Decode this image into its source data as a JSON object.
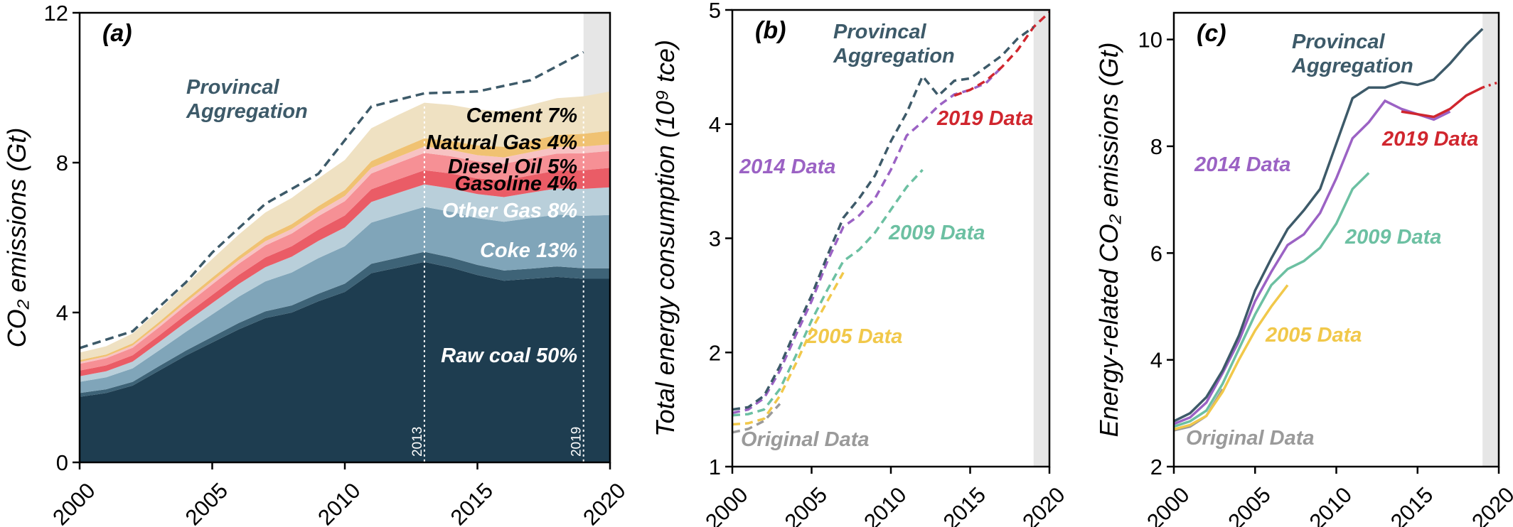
{
  "chart_data": [
    {
      "type": "area",
      "panel_label": "(a)",
      "ylabel": "CO₂ emissions (Gt)",
      "xlim": [
        2000,
        2020
      ],
      "ylim": [
        0,
        12
      ],
      "xticks": [
        2000,
        2005,
        2010,
        2015,
        2020
      ],
      "yticks": [
        0,
        4,
        8,
        12
      ],
      "x": [
        2000,
        2001,
        2002,
        2003,
        2004,
        2005,
        2006,
        2007,
        2008,
        2009,
        2010,
        2011,
        2012,
        2013,
        2014,
        2015,
        2016,
        2017,
        2018,
        2019,
        2020
      ],
      "series": [
        {
          "name": "Raw coal 50%",
          "color": "#1e3d50",
          "values": [
            1.75,
            1.85,
            2.05,
            2.45,
            2.85,
            3.2,
            3.55,
            3.85,
            4.0,
            4.3,
            4.55,
            5.05,
            5.2,
            5.35,
            5.2,
            5.0,
            4.85,
            4.9,
            4.95,
            4.9,
            4.9
          ]
        },
        {
          "name": "",
          "color": "#3e6377",
          "values": [
            0.1,
            0.1,
            0.1,
            0.12,
            0.13,
            0.15,
            0.17,
            0.18,
            0.19,
            0.2,
            0.22,
            0.25,
            0.26,
            0.27,
            0.27,
            0.27,
            0.27,
            0.27,
            0.28,
            0.28,
            0.28
          ]
        },
        {
          "name": "Coke 13%",
          "color": "#80a5b9",
          "values": [
            0.3,
            0.32,
            0.36,
            0.42,
            0.5,
            0.6,
            0.7,
            0.8,
            0.88,
            0.95,
            1.0,
            1.1,
            1.15,
            1.2,
            1.22,
            1.25,
            1.3,
            1.35,
            1.38,
            1.4,
            1.42
          ]
        },
        {
          "name": "Other Gas 8%",
          "color": "#b9cfda",
          "values": [
            0.15,
            0.16,
            0.18,
            0.22,
            0.26,
            0.3,
            0.34,
            0.38,
            0.42,
            0.46,
            0.5,
            0.55,
            0.58,
            0.6,
            0.62,
            0.64,
            0.66,
            0.68,
            0.7,
            0.72,
            0.74
          ]
        },
        {
          "name": "Gasoline 4%",
          "color": "#ea5c66",
          "values": [
            0.15,
            0.16,
            0.17,
            0.18,
            0.2,
            0.22,
            0.24,
            0.26,
            0.28,
            0.3,
            0.32,
            0.34,
            0.36,
            0.38,
            0.4,
            0.42,
            0.44,
            0.46,
            0.48,
            0.5,
            0.52
          ]
        },
        {
          "name": "Diesel Oil 5%",
          "color": "#f69095",
          "values": [
            0.18,
            0.19,
            0.2,
            0.22,
            0.25,
            0.28,
            0.3,
            0.32,
            0.34,
            0.36,
            0.38,
            0.42,
            0.44,
            0.46,
            0.46,
            0.45,
            0.45,
            0.45,
            0.45,
            0.45,
            0.45
          ]
        },
        {
          "name": "",
          "color": "#f7c3c3",
          "values": [
            0.05,
            0.05,
            0.06,
            0.07,
            0.08,
            0.09,
            0.1,
            0.11,
            0.12,
            0.13,
            0.14,
            0.15,
            0.16,
            0.17,
            0.17,
            0.17,
            0.17,
            0.17,
            0.18,
            0.18,
            0.18
          ]
        },
        {
          "name": "Natural Gas 4%",
          "color": "#f0c272",
          "values": [
            0.05,
            0.05,
            0.06,
            0.07,
            0.08,
            0.09,
            0.1,
            0.12,
            0.13,
            0.14,
            0.16,
            0.18,
            0.2,
            0.22,
            0.24,
            0.26,
            0.28,
            0.3,
            0.32,
            0.34,
            0.36
          ]
        },
        {
          "name": "Cement 7%",
          "color": "#efe1c2",
          "values": [
            0.2,
            0.22,
            0.26,
            0.32,
            0.4,
            0.5,
            0.58,
            0.65,
            0.7,
            0.74,
            0.8,
            0.88,
            0.92,
            0.95,
            0.96,
            0.96,
            0.95,
            0.96,
            0.98,
            1.0,
            1.05
          ]
        }
      ],
      "provincial": {
        "name": "Provincal Aggregation",
        "color": "#3d5a69",
        "x": [
          2000,
          2002,
          2004,
          2005,
          2007,
          2009,
          2011,
          2013,
          2015,
          2017,
          2019
        ],
        "values": [
          3.05,
          3.5,
          4.8,
          5.6,
          6.9,
          7.7,
          9.5,
          9.85,
          9.9,
          10.2,
          10.95
        ]
      },
      "vlines": [
        {
          "x": 2013,
          "label": "2013"
        },
        {
          "x": 2019,
          "label": "2019"
        }
      ]
    },
    {
      "type": "line",
      "panel_label": "(b)",
      "ylabel": "Total energy consumption (10⁹ tce)",
      "xlim": [
        2000,
        2020
      ],
      "ylim": [
        1,
        5
      ],
      "xticks": [
        2000,
        2005,
        2010,
        2015,
        2020
      ],
      "yticks": [
        1,
        2,
        3,
        4,
        5
      ],
      "series": [
        {
          "name": "Provincal Aggregation",
          "color": "#3d5a69",
          "x": [
            2000,
            2001,
            2002,
            2003,
            2004,
            2005,
            2006,
            2007,
            2008,
            2009,
            2010,
            2011,
            2012,
            2013,
            2014,
            2015,
            2016,
            2017,
            2018,
            2019
          ],
          "values": [
            1.5,
            1.52,
            1.62,
            1.88,
            2.2,
            2.5,
            2.85,
            3.18,
            3.35,
            3.55,
            3.85,
            4.1,
            4.42,
            4.25,
            4.38,
            4.4,
            4.5,
            4.6,
            4.75,
            4.85
          ]
        },
        {
          "name": "2019 Data",
          "color": "#d0262e",
          "x": [
            2014,
            2015,
            2016,
            2017,
            2018,
            2019,
            2020
          ],
          "values": [
            4.25,
            4.3,
            4.38,
            4.5,
            4.65,
            4.85,
            4.98
          ]
        },
        {
          "name": "2014 Data",
          "color": "#9b62c4",
          "x": [
            2000,
            2001,
            2002,
            2003,
            2004,
            2005,
            2006,
            2007,
            2008,
            2009,
            2010,
            2011,
            2012,
            2013,
            2014,
            2015,
            2016,
            2017
          ],
          "values": [
            1.47,
            1.5,
            1.6,
            1.84,
            2.15,
            2.45,
            2.8,
            3.1,
            3.2,
            3.35,
            3.6,
            3.9,
            4.02,
            4.16,
            4.26,
            4.3,
            4.36,
            4.5
          ]
        },
        {
          "name": "2009 Data",
          "color": "#6cc0a2",
          "x": [
            2000,
            2001,
            2002,
            2003,
            2004,
            2005,
            2006,
            2007,
            2008,
            2009,
            2010,
            2011,
            2012
          ],
          "values": [
            1.45,
            1.46,
            1.5,
            1.68,
            1.97,
            2.28,
            2.55,
            2.8,
            2.9,
            3.05,
            3.25,
            3.45,
            3.6
          ]
        },
        {
          "name": "2005 Data",
          "color": "#f1c84a",
          "x": [
            2000,
            2001,
            2002,
            2003,
            2004,
            2005,
            2006,
            2007
          ],
          "values": [
            1.37,
            1.38,
            1.42,
            1.62,
            1.9,
            2.2,
            2.45,
            2.7
          ]
        },
        {
          "name": "Original Data",
          "color": "#9a9a9a",
          "x": [
            2000,
            2001,
            2002,
            2003
          ],
          "values": [
            1.3,
            1.33,
            1.4,
            1.55
          ]
        }
      ],
      "shade_from": 2019
    },
    {
      "type": "line",
      "panel_label": "(c)",
      "ylabel": "Energy-related CO₂ emissions (Gt)",
      "xlim": [
        2000,
        2020
      ],
      "ylim": [
        2,
        10.5
      ],
      "xticks": [
        2000,
        2005,
        2010,
        2015,
        2020
      ],
      "yticks": [
        2,
        4,
        6,
        8,
        10
      ],
      "series": [
        {
          "name": "Provincal Aggregation",
          "color": "#3d5a69",
          "x": [
            2000,
            2001,
            2002,
            2003,
            2004,
            2005,
            2006,
            2007,
            2008,
            2009,
            2010,
            2011,
            2012,
            2013,
            2014,
            2015,
            2016,
            2017,
            2018,
            2019
          ],
          "values": [
            2.85,
            3.0,
            3.3,
            3.8,
            4.45,
            5.3,
            5.9,
            6.45,
            6.8,
            7.2,
            8.05,
            8.9,
            9.1,
            9.1,
            9.2,
            9.15,
            9.25,
            9.55,
            9.9,
            10.2
          ]
        },
        {
          "name": "2019 Data",
          "color": "#d0262e",
          "x": [
            2014,
            2015,
            2016,
            2017,
            2018,
            2019,
            2020
          ],
          "values": [
            8.65,
            8.6,
            8.55,
            8.7,
            8.95,
            9.1,
            9.2
          ]
        },
        {
          "name": "2014 Data",
          "color": "#9b62c4",
          "x": [
            2000,
            2001,
            2002,
            2003,
            2004,
            2005,
            2006,
            2007,
            2008,
            2009,
            2010,
            2011,
            2012,
            2013,
            2014,
            2015,
            2016,
            2017
          ],
          "values": [
            2.8,
            2.92,
            3.2,
            3.75,
            4.35,
            5.1,
            5.65,
            6.15,
            6.35,
            6.75,
            7.4,
            8.15,
            8.45,
            8.85,
            8.7,
            8.6,
            8.5,
            8.65
          ]
        },
        {
          "name": "2009 Data",
          "color": "#6cc0a2",
          "x": [
            2000,
            2001,
            2002,
            2003,
            2004,
            2005,
            2006,
            2007,
            2008,
            2009,
            2010,
            2011,
            2012
          ],
          "values": [
            2.75,
            2.85,
            3.05,
            3.55,
            4.2,
            4.85,
            5.4,
            5.7,
            5.85,
            6.1,
            6.55,
            7.2,
            7.5
          ]
        },
        {
          "name": "2005 Data",
          "color": "#f1c84a",
          "x": [
            2000,
            2001,
            2002,
            2003,
            2004,
            2005,
            2006,
            2007
          ],
          "values": [
            2.7,
            2.78,
            2.95,
            3.4,
            4.0,
            4.55,
            5.0,
            5.4
          ]
        },
        {
          "name": "Original Data",
          "color": "#9a9a9a",
          "x": [
            2000,
            2001,
            2002,
            2003
          ],
          "values": [
            2.68,
            2.75,
            2.95,
            3.45
          ]
        }
      ],
      "shade_from": 2019
    }
  ]
}
